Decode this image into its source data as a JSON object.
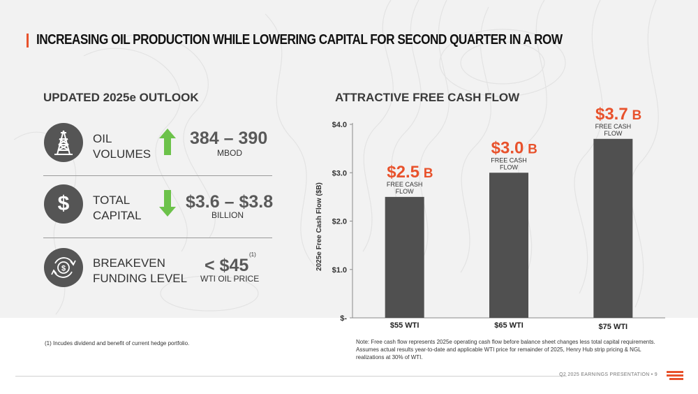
{
  "header": {
    "title": "INCREASING OIL PRODUCTION WHILE LOWERING CAPITAL FOR SECOND QUARTER IN A ROW"
  },
  "outlook": {
    "title": "UPDATED 2025e OUTLOOK",
    "rows": [
      {
        "icon": "oil-derrick-icon",
        "label_line1": "OIL",
        "label_line2": "VOLUMES",
        "arrow": "up-arrow-icon",
        "value": "384 – 390",
        "unit": "MBOD"
      },
      {
        "icon": "dollar-icon",
        "label_line1": "TOTAL",
        "label_line2": "CAPITAL",
        "arrow": "down-arrow-icon",
        "value": "$3.6 – $3.8",
        "unit": "BILLION"
      },
      {
        "icon": "dollar-cycle-icon",
        "label_line1": "BREAKEVEN",
        "label_line2": "FUNDING LEVEL",
        "value": "< $45",
        "superscript": "(1)",
        "unit": "WTI OIL PRICE"
      }
    ],
    "footnote": "(1) Incudes dividend and benefit of current hedge portfolio."
  },
  "chart_section": {
    "title": "ATTRACTIVE FREE CASH FLOW",
    "note": "Note: Free cash flow represents 2025e operating cash flow before balance sheet changes less total capital requirements. Assumes actual results year-to-date and applicable WTI price for remainder of 2025, Henry Hub strip pricing & NGL realizations at 30% of WTI."
  },
  "chart_data": {
    "type": "bar",
    "categories": [
      "$55 WTI",
      "$65 WTI",
      "$75 WTI"
    ],
    "values": [
      2.5,
      3.0,
      3.7
    ],
    "value_labels": [
      "$2.5",
      "$3.0",
      "$3.7"
    ],
    "value_suffix": "B",
    "bar_annotation_line1": "FREE CASH",
    "bar_annotation_line2": "FLOW",
    "ylabel": "2025e Free Cash Flow ($B)",
    "ylim": [
      0,
      4
    ],
    "yticks": [
      0,
      1,
      2,
      3,
      4
    ],
    "ytick_labels": [
      "$-",
      "$1.0",
      "$2.0",
      "$3.0",
      "$4.0"
    ],
    "grid": false,
    "bar_color": "#505050",
    "label_color": "#e8522c"
  },
  "footer": {
    "text": "Q2 2025 EARNINGS PRESENTATION  •  9"
  },
  "colors": {
    "accent": "#e8522c",
    "up_arrow": "#6cc24a",
    "down_arrow": "#6cc24a",
    "icon_bg": "#555555"
  }
}
